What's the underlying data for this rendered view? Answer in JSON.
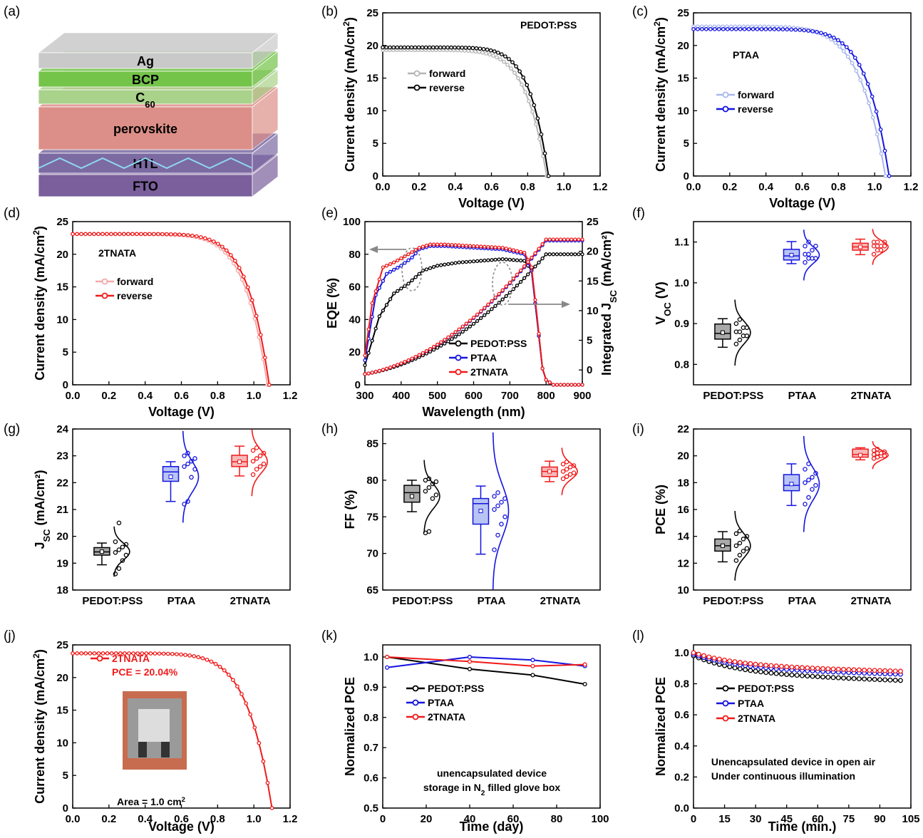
{
  "figure_labels": [
    "(a)",
    "(b)",
    "(c)",
    "(d)",
    "(e)",
    "(f)",
    "(g)",
    "(h)",
    "(i)",
    "(j)",
    "(k)",
    "(l)"
  ],
  "colors": {
    "pedot": "#000000",
    "ptaa": "#1414e0",
    "tnata": "#f01a1a",
    "pedot_fwd": "#b5b5b5",
    "ptaa_fwd": "#a9b7ee",
    "tnata_fwd": "#f5a8a8"
  },
  "stack": {
    "layers": [
      {
        "label": "Ag",
        "sub": "",
        "color": "#c9c9c9"
      },
      {
        "label": "BCP",
        "sub": "",
        "color": "#74c44a"
      },
      {
        "label": "C",
        "sub": "60",
        "color": "#a9d28a"
      },
      {
        "label": "perovskite",
        "sub": "",
        "color": "#dc8f88"
      },
      {
        "label": "HTL",
        "sub": "",
        "color": "#7c6aa3"
      },
      {
        "label": "FTO",
        "sub": "",
        "color": "#7a5f9c"
      }
    ]
  },
  "chart_data": [
    {
      "id": "b",
      "type": "line",
      "title": "PEDOT:PSS",
      "xlabel": "Voltage (V)",
      "ylabel": "Current density (mA/cm²)",
      "xlim": [
        0,
        1.2
      ],
      "ylim": [
        0,
        25
      ],
      "xticks": [
        "0.0",
        "0.2",
        "0.4",
        "0.6",
        "0.8",
        "1.0",
        "1.2"
      ],
      "yticks": [
        "0",
        "5",
        "10",
        "15",
        "20",
        "25"
      ],
      "series": [
        {
          "name": "forward",
          "jsc": 19.3,
          "voc": 0.905,
          "ff": 0.76
        },
        {
          "name": "reverse",
          "jsc": 19.7,
          "voc": 0.915,
          "ff": 0.8
        }
      ]
    },
    {
      "id": "c",
      "type": "line",
      "title": "PTAA",
      "xlabel": "Voltage (V)",
      "ylabel": "Current density (mA/cm²)",
      "xlim": [
        0,
        1.2
      ],
      "ylim": [
        0,
        25
      ],
      "xticks": [
        "0.0",
        "0.2",
        "0.4",
        "0.6",
        "0.8",
        "1.0",
        "1.2"
      ],
      "yticks": [
        "0",
        "5",
        "10",
        "15",
        "20",
        "25"
      ],
      "series": [
        {
          "name": "forward",
          "jsc": 22.9,
          "voc": 1.06,
          "ff": 0.74
        },
        {
          "name": "reverse",
          "jsc": 22.5,
          "voc": 1.08,
          "ff": 0.79
        }
      ]
    },
    {
      "id": "d",
      "type": "line",
      "title": "2TNATA",
      "xlabel": "Voltage (V)",
      "ylabel": "Current density (mA/cm²)",
      "xlim": [
        0,
        1.2
      ],
      "ylim": [
        0,
        25
      ],
      "xticks": [
        "0.0",
        "0.2",
        "0.4",
        "0.6",
        "0.8",
        "1.0",
        "1.2"
      ],
      "yticks": [
        "0",
        "5",
        "10",
        "15",
        "20",
        "25"
      ],
      "series": [
        {
          "name": "forward",
          "jsc": 23.1,
          "voc": 1.075,
          "ff": 0.79
        },
        {
          "name": "reverse",
          "jsc": 23.1,
          "voc": 1.085,
          "ff": 0.81
        }
      ]
    },
    {
      "id": "e",
      "type": "line",
      "xlabel": "Wavelength (nm)",
      "ylabel": "EQE (%)",
      "ylabel_right": "Integrated J",
      "ylabel_right_sub": "SC",
      "ylabel_right_unit": " (mA/cm²)",
      "xlim": [
        300,
        900
      ],
      "ylim": [
        0,
        100
      ],
      "y2lim": [
        -2.5,
        25
      ],
      "xticks": [
        "300",
        "400",
        "500",
        "600",
        "700",
        "800",
        "900"
      ],
      "yticks": [
        "0",
        "20",
        "40",
        "60",
        "80",
        "100"
      ],
      "y2ticks": [
        "0",
        "5",
        "10",
        "15",
        "20",
        "25"
      ],
      "series": [
        {
          "name": "PEDOT:PSS",
          "eqe_x": [
            300,
            340,
            380,
            420,
            460,
            500,
            560,
            620,
            680,
            740,
            760,
            775,
            790,
            800,
            820,
            900
          ],
          "eqe_y": [
            12,
            42,
            56,
            62,
            70,
            73,
            75,
            76,
            77,
            76,
            70,
            40,
            10,
            3,
            0,
            0
          ],
          "jsc_final": 19.5
        },
        {
          "name": "PTAA",
          "eqe_x": [
            300,
            330,
            360,
            400,
            430,
            450,
            480,
            520,
            600,
            680,
            740,
            760,
            775,
            790,
            800,
            820,
            900
          ],
          "eqe_y": [
            15,
            55,
            68,
            73,
            78,
            83,
            85,
            85,
            84,
            83,
            80,
            70,
            40,
            10,
            3,
            0,
            0
          ],
          "jsc_final": 21.8
        },
        {
          "name": "2TNATA",
          "eqe_x": [
            300,
            320,
            350,
            380,
            420,
            450,
            480,
            520,
            600,
            680,
            740,
            760,
            775,
            790,
            800,
            820,
            900
          ],
          "eqe_y": [
            18,
            50,
            72,
            75,
            80,
            84,
            86,
            86,
            85,
            84,
            81,
            72,
            42,
            10,
            3,
            0,
            0
          ],
          "jsc_final": 22.0
        }
      ]
    },
    {
      "id": "f",
      "type": "box",
      "ylabel": "V",
      "ylabel_sub": "OC",
      "ylabel_unit": " (V)",
      "ylim": [
        0.75,
        1.15
      ],
      "yticks": [
        "0.8",
        "0.9",
        "1.0",
        "1.1"
      ],
      "categories": [
        "PEDOT:PSS",
        "PTAA",
        "2TNATA"
      ],
      "boxes": [
        {
          "min": 0.842,
          "q1": 0.862,
          "median": 0.876,
          "mean": 0.878,
          "q3": 0.899,
          "max": 0.912
        },
        {
          "min": 1.047,
          "q1": 1.056,
          "median": 1.066,
          "mean": 1.068,
          "q3": 1.082,
          "max": 1.101
        },
        {
          "min": 1.069,
          "q1": 1.08,
          "median": 1.088,
          "mean": 1.088,
          "q3": 1.097,
          "max": 1.107
        }
      ],
      "points": [
        [
          0.85,
          0.86,
          0.87,
          0.87,
          0.88,
          0.88,
          0.89,
          0.89,
          0.9,
          0.91
        ],
        [
          1.05,
          1.06,
          1.06,
          1.06,
          1.07,
          1.07,
          1.08,
          1.09,
          1.09,
          1.1
        ],
        [
          1.07,
          1.08,
          1.08,
          1.09,
          1.09,
          1.09,
          1.09,
          1.1,
          1.1,
          1.1
        ]
      ]
    },
    {
      "id": "g",
      "type": "box",
      "ylabel": "J",
      "ylabel_sub": "SC",
      "ylabel_unit": " (mA/cm²)",
      "ylim": [
        18,
        24
      ],
      "yticks": [
        "18",
        "19",
        "20",
        "21",
        "22",
        "23",
        "24"
      ],
      "categories": [
        "PEDOT:PSS",
        "PTAA",
        "2TNATA"
      ],
      "boxes": [
        {
          "min": 18.94,
          "q1": 19.3,
          "median": 19.42,
          "mean": 19.43,
          "q3": 19.58,
          "max": 19.75
        },
        {
          "min": 21.3,
          "q1": 22.05,
          "median": 22.4,
          "mean": 22.22,
          "q3": 22.6,
          "max": 22.78
        },
        {
          "min": 22.25,
          "q1": 22.6,
          "median": 22.78,
          "mean": 22.78,
          "q3": 23.02,
          "max": 23.36
        }
      ],
      "points": [
        [
          18.6,
          18.8,
          19.1,
          19.3,
          19.4,
          19.5,
          19.6,
          19.7,
          19.8,
          20.5
        ],
        [
          21.2,
          21.3,
          22.2,
          22.5,
          22.6,
          22.7,
          22.8,
          22.9,
          23.0,
          23.1
        ],
        [
          22.3,
          22.5,
          22.6,
          22.7,
          22.8,
          22.9,
          23.0,
          23.1,
          23.2,
          23.3
        ]
      ]
    },
    {
      "id": "h",
      "type": "box",
      "ylabel": "FF (%)",
      "ylim": [
        65,
        87
      ],
      "yticks": [
        "65",
        "70",
        "75",
        "80",
        "85"
      ],
      "categories": [
        "PEDOT:PSS",
        "PTAA",
        "2TNATA"
      ],
      "boxes": [
        {
          "min": 75.7,
          "q1": 77.0,
          "median": 78.3,
          "mean": 77.8,
          "q3": 79.3,
          "max": 80.0
        },
        {
          "min": 69.9,
          "q1": 74.0,
          "median": 76.8,
          "mean": 75.8,
          "q3": 77.5,
          "max": 79.2
        },
        {
          "min": 79.8,
          "q1": 80.5,
          "median": 81.2,
          "mean": 81.2,
          "q3": 81.8,
          "max": 82.6
        }
      ],
      "points": [
        [
          72.8,
          73.0,
          77.5,
          78.0,
          78.5,
          79.0,
          79.5,
          79.8,
          80.0,
          80.2
        ],
        [
          70.5,
          72.5,
          74.0,
          75.0,
          76.0,
          76.5,
          77.0,
          77.5,
          77.8,
          78.3
        ],
        [
          80.2,
          80.5,
          80.8,
          81.0,
          81.2,
          81.5,
          81.8,
          82.0,
          82.2,
          82.5
        ]
      ]
    },
    {
      "id": "i",
      "type": "box",
      "ylabel": "PCE (%)",
      "ylim": [
        10,
        22
      ],
      "yticks": [
        "10",
        "12",
        "14",
        "16",
        "18",
        "20",
        "22"
      ],
      "categories": [
        "PEDOT:PSS",
        "PTAA",
        "2TNATA"
      ],
      "boxes": [
        {
          "min": 12.1,
          "q1": 12.9,
          "median": 13.3,
          "mean": 13.3,
          "q3": 13.8,
          "max": 14.35
        },
        {
          "min": 16.3,
          "q1": 17.4,
          "median": 17.8,
          "mean": 17.9,
          "q3": 18.6,
          "max": 19.4
        },
        {
          "min": 19.7,
          "q1": 19.9,
          "median": 20.1,
          "mean": 20.05,
          "q3": 20.5,
          "max": 20.6
        }
      ],
      "points": [
        [
          12.2,
          12.6,
          12.9,
          13.1,
          13.3,
          13.5,
          13.8,
          14.0,
          14.2,
          14.4
        ],
        [
          16.4,
          16.9,
          17.5,
          17.8,
          18.0,
          18.2,
          18.4,
          18.7,
          19.0,
          19.4
        ],
        [
          19.8,
          19.9,
          20.0,
          20.0,
          20.1,
          20.2,
          20.2,
          20.3,
          20.4,
          20.5
        ]
      ]
    },
    {
      "id": "j",
      "type": "line",
      "xlabel": "Voltage (V)",
      "ylabel": "Current density (mA/cm²)",
      "xlim": [
        0,
        1.2
      ],
      "ylim": [
        0,
        25
      ],
      "xticks": [
        "0.0",
        "0.2",
        "0.4",
        "0.6",
        "0.8",
        "1.0",
        "1.2"
      ],
      "yticks": [
        "0",
        "5",
        "10",
        "15",
        "20",
        "25"
      ],
      "series": [
        {
          "name": "2TNATA",
          "jsc": 23.7,
          "voc": 1.1,
          "ff": 0.77
        }
      ],
      "annotations": {
        "pce": "PCE = 20.04%",
        "area": "Area = 1.0 cm",
        "area_sup": "2"
      }
    },
    {
      "id": "k",
      "type": "line",
      "xlabel": "Time (day)",
      "ylabel": "Normalized PCE",
      "xlim": [
        0,
        100
      ],
      "ylim": [
        0.5,
        1.04
      ],
      "xticks": [
        "0",
        "20",
        "40",
        "60",
        "80",
        "100"
      ],
      "yticks": [
        "0.5",
        "0.6",
        "0.7",
        "0.8",
        "0.9",
        "1.0"
      ],
      "note1": "unencapsulated device",
      "note2a": "storage in N",
      "note2sub": "2",
      "note2b": " filled glove box",
      "series": [
        {
          "name": "PEDOT:PSS",
          "x": [
            2,
            40,
            69,
            93
          ],
          "y": [
            1.0,
            0.96,
            0.94,
            0.91
          ]
        },
        {
          "name": "PTAA",
          "x": [
            2,
            40,
            69,
            93
          ],
          "y": [
            0.965,
            1.0,
            0.99,
            0.97
          ]
        },
        {
          "name": "2TNATA",
          "x": [
            2,
            40,
            69,
            93
          ],
          "y": [
            1.0,
            0.985,
            0.97,
            0.975
          ]
        }
      ]
    },
    {
      "id": "l",
      "type": "line",
      "xlabel": "Time (min.)",
      "ylabel": "Normalized PCE",
      "xlim": [
        0,
        105
      ],
      "ylim": [
        0,
        1.05
      ],
      "xticks": [
        "0",
        "15",
        "30",
        "45",
        "60",
        "75",
        "90",
        "105"
      ],
      "yticks": [
        "0.0",
        "0.2",
        "0.4",
        "0.6",
        "0.8",
        "1.0"
      ],
      "note1": "Unencapsulated device in open air",
      "note2": "Under continuous illumination",
      "series": [
        {
          "name": "PEDOT:PSS",
          "start": 0.98,
          "end": 0.82
        },
        {
          "name": "PTAA",
          "start": 0.99,
          "end": 0.86
        },
        {
          "name": "2TNATA",
          "start": 1.0,
          "end": 0.88
        }
      ]
    }
  ]
}
